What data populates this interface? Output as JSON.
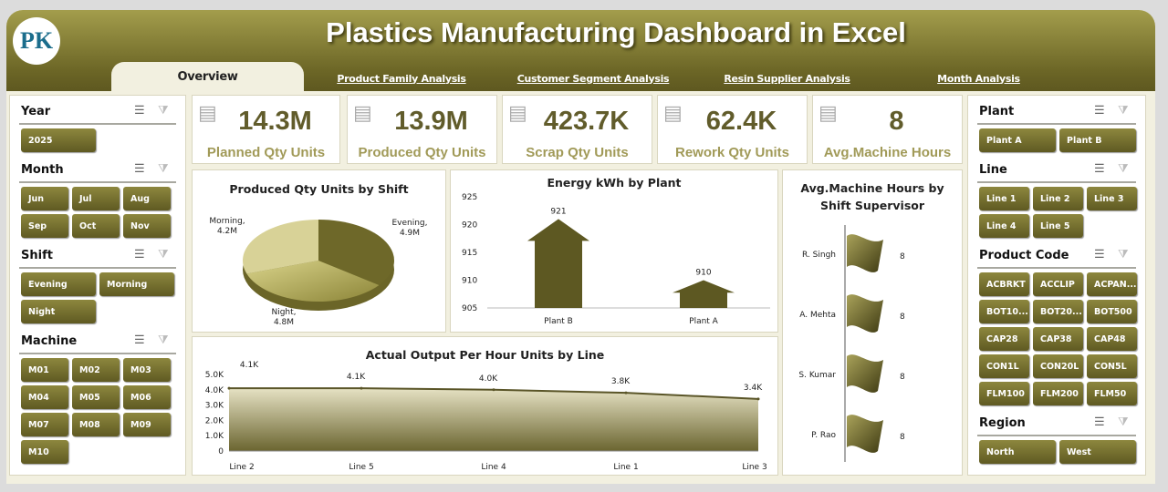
{
  "header": {
    "title": "Plastics Manufacturing Dashboard in Excel",
    "logo_text": "PK"
  },
  "tabs": [
    "Overview",
    "Product Family Analysis",
    "Customer Segment Analysis",
    "Resin Supplier Analysis",
    "Month Analysis"
  ],
  "left_slicers": [
    {
      "title": "Year",
      "items": [
        "2025"
      ]
    },
    {
      "title": "Month",
      "items": [
        "Jun",
        "Jul",
        "Aug",
        "Sep",
        "Oct",
        "Nov"
      ]
    },
    {
      "title": "Shift",
      "items": [
        "Evening",
        "Morning",
        "Night"
      ]
    },
    {
      "title": "Machine",
      "items": [
        "M01",
        "M02",
        "M03",
        "M04",
        "M05",
        "M06",
        "M07",
        "M08",
        "M09",
        "M10"
      ]
    }
  ],
  "right_slicers": [
    {
      "title": "Plant",
      "items": [
        "Plant A",
        "Plant B"
      ]
    },
    {
      "title": "Line",
      "items": [
        "Line 1",
        "Line 2",
        "Line 3",
        "Line 4",
        "Line 5"
      ]
    },
    {
      "title": "Product Code",
      "items": [
        "ACBRKT",
        "ACCLIP",
        "ACPAN...",
        "BOT10...",
        "BOT20...",
        "BOT500",
        "CAP28",
        "CAP38",
        "CAP48",
        "CON1L",
        "CON20L",
        "CON5L",
        "FLM100",
        "FLM200",
        "FLM50"
      ]
    },
    {
      "title": "Region",
      "items": [
        "North",
        "West"
      ]
    }
  ],
  "kpis": [
    {
      "value": "14.3M",
      "label": "Planned Qty Units",
      "icon": "clipboard-icon"
    },
    {
      "value": "13.9M",
      "label": "Produced Qty Units",
      "icon": "checklist-icon"
    },
    {
      "value": "423.7K",
      "label": "Scrap Qty Units",
      "icon": "network-icon"
    },
    {
      "value": "62.4K",
      "label": "Rework Qty Units",
      "icon": "gear-network-icon"
    },
    {
      "value": "8",
      "label": "Avg.Machine Hours",
      "icon": "clock-report-icon"
    }
  ],
  "colors": {
    "brand": "#6c6626",
    "accent": "#8d873e",
    "kpi_value": "#615c2b",
    "kpi_label": "#a19a58"
  },
  "chart_data": [
    {
      "type": "pie",
      "title": "Produced Qty Units by Shift",
      "categories": [
        "Evening",
        "Night",
        "Morning"
      ],
      "values": [
        4.9,
        4.8,
        4.2
      ],
      "labels": [
        "4.9M",
        "4.8M",
        "4.2M"
      ]
    },
    {
      "type": "bar",
      "title": "Energy kWh by Plant",
      "categories": [
        "Plant B",
        "Plant A"
      ],
      "values": [
        921,
        910
      ],
      "ylim": [
        905,
        925
      ],
      "yticks": [
        "905",
        "910",
        "915",
        "920",
        "925"
      ]
    },
    {
      "type": "bar",
      "orientation": "horizontal",
      "title": "Avg.Machine Hours by Shift Supervisor",
      "categories": [
        "R. Singh",
        "A. Mehta",
        "S. Kumar",
        "P. Rao"
      ],
      "values": [
        8,
        8,
        8,
        8
      ]
    },
    {
      "type": "area",
      "title": "Actual Output Per Hour Units by Line",
      "categories": [
        "Line 2",
        "Line 5",
        "Line 4",
        "Line 1",
        "Line 3"
      ],
      "values": [
        4.1,
        4.1,
        4.0,
        3.8,
        3.4
      ],
      "labels": [
        "4.1K",
        "4.1K",
        "4.0K",
        "3.8K",
        "3.4K"
      ],
      "ylim": [
        0,
        5
      ],
      "yticks": [
        "0",
        "1.0K",
        "2.0K",
        "3.0K",
        "4.0K",
        "5.0K"
      ]
    }
  ]
}
